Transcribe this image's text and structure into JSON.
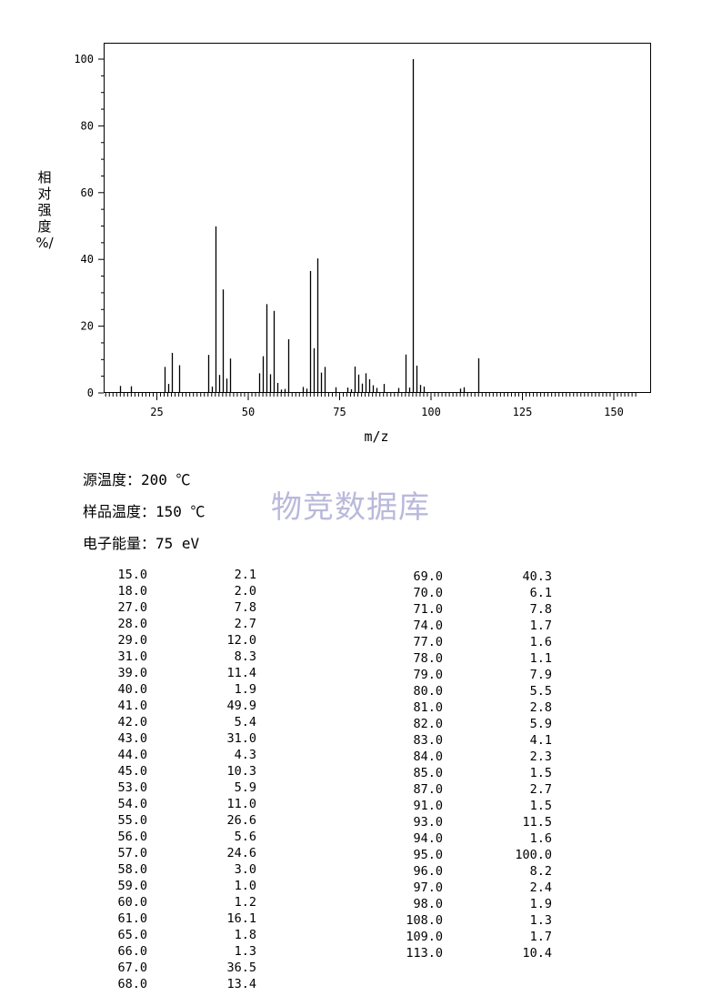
{
  "chart_data": {
    "type": "bar",
    "xlabel": "m/z",
    "ylabel": "相对强度%/",
    "xlim": [
      10,
      160
    ],
    "ylim": [
      0,
      100
    ],
    "xticks": [
      25,
      50,
      75,
      100,
      125,
      150
    ],
    "yticks": [
      0,
      20,
      40,
      60,
      80,
      100
    ],
    "grid": false,
    "peaks": [
      {
        "mz": 15.0,
        "intensity": 2.1
      },
      {
        "mz": 18.0,
        "intensity": 2.0
      },
      {
        "mz": 27.0,
        "intensity": 7.8
      },
      {
        "mz": 28.0,
        "intensity": 2.7
      },
      {
        "mz": 29.0,
        "intensity": 12.0
      },
      {
        "mz": 31.0,
        "intensity": 8.3
      },
      {
        "mz": 39.0,
        "intensity": 11.4
      },
      {
        "mz": 40.0,
        "intensity": 1.9
      },
      {
        "mz": 41.0,
        "intensity": 49.9
      },
      {
        "mz": 42.0,
        "intensity": 5.4
      },
      {
        "mz": 43.0,
        "intensity": 31.0
      },
      {
        "mz": 44.0,
        "intensity": 4.3
      },
      {
        "mz": 45.0,
        "intensity": 10.3
      },
      {
        "mz": 53.0,
        "intensity": 5.9
      },
      {
        "mz": 54.0,
        "intensity": 11.0
      },
      {
        "mz": 55.0,
        "intensity": 26.6
      },
      {
        "mz": 56.0,
        "intensity": 5.6
      },
      {
        "mz": 57.0,
        "intensity": 24.6
      },
      {
        "mz": 58.0,
        "intensity": 3.0
      },
      {
        "mz": 59.0,
        "intensity": 1.0
      },
      {
        "mz": 60.0,
        "intensity": 1.2
      },
      {
        "mz": 61.0,
        "intensity": 16.1
      },
      {
        "mz": 65.0,
        "intensity": 1.8
      },
      {
        "mz": 66.0,
        "intensity": 1.3
      },
      {
        "mz": 67.0,
        "intensity": 36.5
      },
      {
        "mz": 68.0,
        "intensity": 13.4
      },
      {
        "mz": 69.0,
        "intensity": 40.3
      },
      {
        "mz": 70.0,
        "intensity": 6.1
      },
      {
        "mz": 71.0,
        "intensity": 7.8
      },
      {
        "mz": 74.0,
        "intensity": 1.7
      },
      {
        "mz": 77.0,
        "intensity": 1.6
      },
      {
        "mz": 78.0,
        "intensity": 1.1
      },
      {
        "mz": 79.0,
        "intensity": 7.9
      },
      {
        "mz": 80.0,
        "intensity": 5.5
      },
      {
        "mz": 81.0,
        "intensity": 2.8
      },
      {
        "mz": 82.0,
        "intensity": 5.9
      },
      {
        "mz": 83.0,
        "intensity": 4.1
      },
      {
        "mz": 84.0,
        "intensity": 2.3
      },
      {
        "mz": 85.0,
        "intensity": 1.5
      },
      {
        "mz": 87.0,
        "intensity": 2.7
      },
      {
        "mz": 91.0,
        "intensity": 1.5
      },
      {
        "mz": 93.0,
        "intensity": 11.5
      },
      {
        "mz": 94.0,
        "intensity": 1.6
      },
      {
        "mz": 95.0,
        "intensity": 100.0
      },
      {
        "mz": 96.0,
        "intensity": 8.2
      },
      {
        "mz": 97.0,
        "intensity": 2.4
      },
      {
        "mz": 98.0,
        "intensity": 1.9
      },
      {
        "mz": 108.0,
        "intensity": 1.3
      },
      {
        "mz": 109.0,
        "intensity": 1.7
      },
      {
        "mz": 113.0,
        "intensity": 10.4
      }
    ]
  },
  "ylabel_chars": [
    "相",
    "对",
    "强",
    "度",
    "%/"
  ],
  "conditions": {
    "source_temp": "源温度：200 ℃",
    "sample_temp": "样品温度：150 ℃",
    "electron_energy": "电子能量：75 eV"
  },
  "watermark": "物竞数据库",
  "table": {
    "col1": [
      [
        "15.0",
        "2.1"
      ],
      [
        "18.0",
        "2.0"
      ],
      [
        "27.0",
        "7.8"
      ],
      [
        "28.0",
        "2.7"
      ],
      [
        "29.0",
        "12.0"
      ],
      [
        "31.0",
        "8.3"
      ],
      [
        "39.0",
        "11.4"
      ],
      [
        "40.0",
        "1.9"
      ],
      [
        "41.0",
        "49.9"
      ],
      [
        "42.0",
        "5.4"
      ],
      [
        "43.0",
        "31.0"
      ],
      [
        "44.0",
        "4.3"
      ],
      [
        "45.0",
        "10.3"
      ],
      [
        "53.0",
        "5.9"
      ],
      [
        "54.0",
        "11.0"
      ],
      [
        "55.0",
        "26.6"
      ],
      [
        "56.0",
        "5.6"
      ],
      [
        "57.0",
        "24.6"
      ],
      [
        "58.0",
        "3.0"
      ],
      [
        "59.0",
        "1.0"
      ],
      [
        "60.0",
        "1.2"
      ],
      [
        "61.0",
        "16.1"
      ],
      [
        "65.0",
        "1.8"
      ],
      [
        "66.0",
        "1.3"
      ],
      [
        "67.0",
        "36.5"
      ],
      [
        "68.0",
        "13.4"
      ]
    ],
    "col2": [
      [
        "69.0",
        "40.3"
      ],
      [
        "70.0",
        "6.1"
      ],
      [
        "71.0",
        "7.8"
      ],
      [
        "74.0",
        "1.7"
      ],
      [
        "77.0",
        "1.6"
      ],
      [
        "78.0",
        "1.1"
      ],
      [
        "79.0",
        "7.9"
      ],
      [
        "80.0",
        "5.5"
      ],
      [
        "81.0",
        "2.8"
      ],
      [
        "82.0",
        "5.9"
      ],
      [
        "83.0",
        "4.1"
      ],
      [
        "84.0",
        "2.3"
      ],
      [
        "85.0",
        "1.5"
      ],
      [
        "87.0",
        "2.7"
      ],
      [
        "91.0",
        "1.5"
      ],
      [
        "93.0",
        "11.5"
      ],
      [
        "94.0",
        "1.6"
      ],
      [
        "95.0",
        "100.0"
      ],
      [
        "96.0",
        "8.2"
      ],
      [
        "97.0",
        "2.4"
      ],
      [
        "98.0",
        "1.9"
      ],
      [
        "108.0",
        "1.3"
      ],
      [
        "109.0",
        "1.7"
      ],
      [
        "113.0",
        "10.4"
      ]
    ]
  },
  "colors": {
    "watermark": "#b9b9dc",
    "ink": "#000000"
  }
}
